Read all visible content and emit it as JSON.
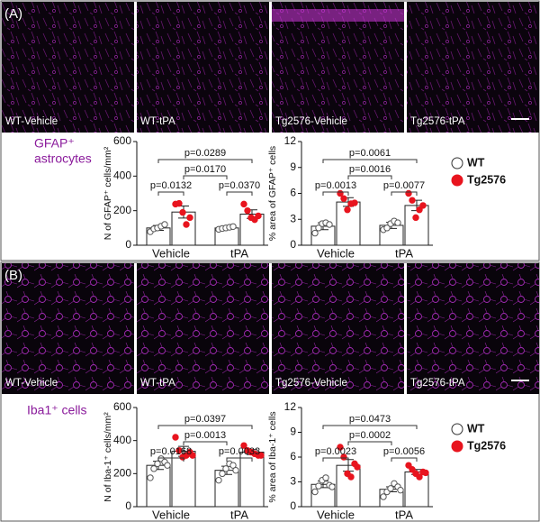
{
  "panels": [
    {
      "label": "(A)",
      "images": [
        "WT-Vehicle",
        "WT-tPA",
        "Tg2576-Vehicle",
        "Tg2576-tPA"
      ],
      "caption": [
        "GFAP⁺",
        "astrocytes"
      ]
    },
    {
      "label": "(B)",
      "images": [
        "WT-Vehicle",
        "WT-tPA",
        "Tg2576-Vehicle",
        "Tg2576-tPA"
      ],
      "caption": [
        "Iba1⁺ cells"
      ]
    }
  ],
  "chart_data": [
    {
      "type": "bar",
      "ylabel": "N of GFAP⁺ cells/mm²",
      "categories": [
        "Vehicle",
        "tPA"
      ],
      "ylim": [
        0,
        600
      ],
      "yticks": [
        0,
        200,
        400,
        600
      ],
      "series": [
        {
          "color": "#ffffff",
          "values": [
            100,
            100
          ],
          "errors": [
            14,
            8
          ],
          "points": [
            [
              78,
              95,
              100,
              110,
              120
            ],
            [
              92,
              97,
              100,
              104,
              108
            ]
          ]
        },
        {
          "color": "#e8141e",
          "values": [
            192,
            180
          ],
          "errors": [
            35,
            25
          ],
          "points": [
            [
              238,
              242,
              190,
              120,
              160
            ],
            [
              238,
              200,
              160,
              148,
              170
            ]
          ]
        }
      ],
      "annotations": [
        "p=0.0289",
        "p=0.0170",
        "p=0.0132",
        "p=0.0370"
      ]
    },
    {
      "type": "bar",
      "ylabel": "% area of GFAP⁺ cells",
      "categories": [
        "Vehicle",
        "tPA"
      ],
      "ylim": [
        0,
        12
      ],
      "yticks": [
        0,
        3,
        6,
        9,
        12
      ],
      "legend": "right",
      "series": [
        {
          "name": "WT",
          "color": "#ffffff",
          "values": [
            2.2,
            2.3
          ],
          "errors": [
            0.4,
            0.35
          ],
          "points": [
            [
              1.4,
              2.0,
              2.5,
              2.6,
              2.4
            ],
            [
              1.8,
              2.0,
              2.5,
              2.8,
              2.6
            ]
          ]
        },
        {
          "name": "Tg2576",
          "color": "#e8141e",
          "values": [
            5.0,
            4.6
          ],
          "errors": [
            0.5,
            0.6
          ],
          "points": [
            [
              6.0,
              5.4,
              4.1,
              4.8,
              4.9
            ],
            [
              6.0,
              5.2,
              3.2,
              4.1,
              4.6
            ]
          ]
        }
      ],
      "annotations": [
        "p=0.0061",
        "p=0.0016",
        "p=0.0013",
        "p=0.0077"
      ]
    },
    {
      "type": "bar",
      "ylabel": "N of Iba-1⁺ cells/mm²",
      "categories": [
        "Vehicle",
        "tPA"
      ],
      "ylim": [
        0,
        600
      ],
      "yticks": [
        0,
        200,
        400,
        600
      ],
      "series": [
        {
          "color": "#ffffff",
          "values": [
            250,
            220
          ],
          "errors": [
            25,
            25
          ],
          "points": [
            [
              175,
              230,
              260,
              290,
              270,
              250
            ],
            [
              160,
              200,
              230,
              260,
              250,
              220
            ]
          ]
        },
        {
          "color": "#e8141e",
          "values": [
            335,
            330
          ],
          "errors": [
            30,
            15
          ],
          "points": [
            [
              420,
              340,
              300,
              310,
              330,
              310
            ],
            [
              370,
              340,
              330,
              320,
              310,
              310
            ]
          ]
        }
      ],
      "annotations": [
        "p=0.0397",
        "p=0.0013",
        "p=0.0168",
        "p=0.0033"
      ]
    },
    {
      "type": "bar",
      "ylabel": "% area of Iba-1⁺ cells",
      "categories": [
        "Vehicle",
        "tPA"
      ],
      "ylim": [
        0,
        12
      ],
      "yticks": [
        0,
        3,
        6,
        9,
        12
      ],
      "legend": "right",
      "series": [
        {
          "name": "WT",
          "color": "#ffffff",
          "values": [
            2.7,
            2.1
          ],
          "errors": [
            0.4,
            0.3
          ],
          "points": [
            [
              1.8,
              2.5,
              3.2,
              3.5,
              2.6,
              2.4
            ],
            [
              1.2,
              1.8,
              2.2,
              2.8,
              2.4,
              2.0
            ]
          ]
        },
        {
          "name": "Tg2576",
          "color": "#e8141e",
          "values": [
            5.0,
            4.2
          ],
          "errors": [
            0.7,
            0.3
          ],
          "points": [
            [
              7.2,
              6.0,
              4.0,
              3.6,
              5.2,
              4.8
            ],
            [
              5.0,
              4.5,
              4.0,
              3.6,
              4.2,
              4.1
            ]
          ]
        }
      ],
      "annotations": [
        "p=0.0473",
        "p=0.0002",
        "p=0.0023",
        "p=0.0056"
      ]
    }
  ]
}
